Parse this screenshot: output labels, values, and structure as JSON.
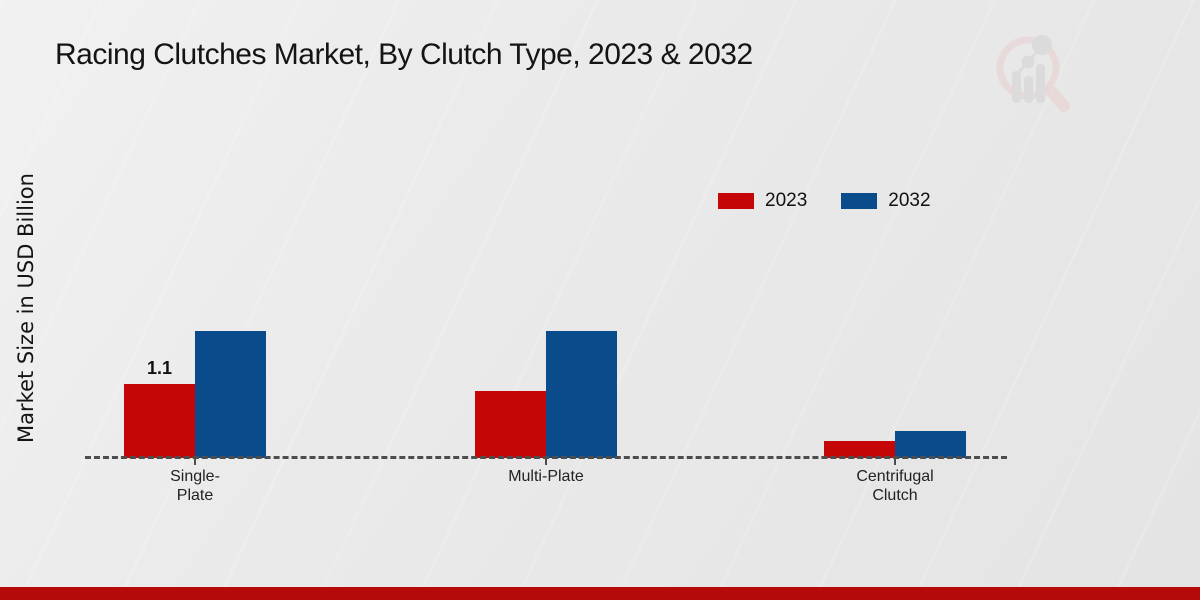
{
  "title": "Racing Clutches Market, By Clutch Type, 2023 & 2032",
  "colors": {
    "series_2023": "#c40606",
    "series_2032": "#0a4b8c",
    "footer_bar": "#b40a0a",
    "baseline": "#4d4d4d",
    "background": "#eaeaea",
    "watermark_pink": "#e9cfcf",
    "watermark_gray": "#d2d2d2"
  },
  "legend": {
    "position": "top-right",
    "items": [
      {
        "label": "2023",
        "color": "#c40606"
      },
      {
        "label": "2032",
        "color": "#0a4b8c"
      }
    ]
  },
  "watermark": {
    "name": "market-research-magnifier-logo"
  },
  "chart_data": {
    "type": "bar",
    "title": "Racing Clutches Market, By Clutch Type, 2023 & 2032",
    "xlabel": "",
    "ylabel": "Market Size in USD Billion",
    "ylim": [
      0,
      2.2
    ],
    "grid": false,
    "axis_style": "dashed-baseline-only",
    "categories": [
      "Single-\nPlate",
      "Multi-Plate",
      "Centrifugal\nClutch"
    ],
    "series": [
      {
        "name": "2023",
        "color": "#c40606",
        "values": [
          1.1,
          1.0,
          0.25
        ],
        "bar_labels": [
          "1.1",
          "",
          ""
        ]
      },
      {
        "name": "2032",
        "color": "#0a4b8c",
        "values": [
          1.9,
          1.9,
          0.4
        ],
        "bar_labels": [
          "",
          "",
          ""
        ]
      }
    ]
  }
}
